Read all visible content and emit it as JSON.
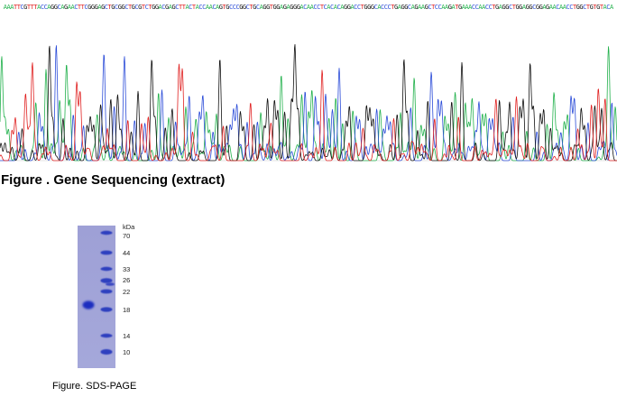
{
  "sequencing": {
    "bases": "AAATTCGTTTACCAGGCAGAACTTCGGGAGCTGCGGCTGCGTCTGGACGAGCTTACTACCAACAGTGCCCGGCTGCAGGTGGAGAGGGACAACCTCACACAGGACCTGGGCACCCTGAGGCAGAAGCTCCAAGATGAAACCAACCTGAGGCTGGAGGCGGAGAACAACCTGGCTGTGTACA",
    "base_colors": {
      "A": "#22b14c",
      "C": "#2b4cd8",
      "G": "#111111",
      "T": "#e02020"
    },
    "caption": "Figure . Gene Sequencing (extract)"
  },
  "sds_page": {
    "unit_label": "kDa",
    "markers": [
      "70",
      "44",
      "33",
      "26",
      "22",
      "18",
      "14",
      "10"
    ],
    "caption": "Figure. SDS-PAGE"
  }
}
